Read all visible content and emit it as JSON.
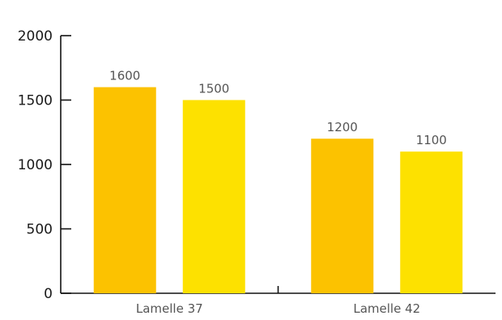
{
  "chart_data": {
    "type": "bar",
    "categories": [
      "Lamelle 37",
      "Lamelle 42"
    ],
    "series": [
      {
        "values": [
          1600,
          1200
        ],
        "color": "#FCC200"
      },
      {
        "values": [
          1500,
          1100
        ],
        "color": "#FDE100"
      }
    ],
    "yticks": [
      0,
      500,
      1000,
      1500,
      2000
    ],
    "ylim": [
      0,
      2000
    ],
    "grid": false,
    "legend": "none",
    "data_labels": true
  }
}
